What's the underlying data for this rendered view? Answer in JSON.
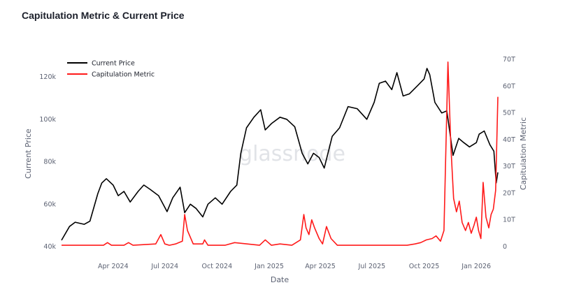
{
  "chart_data": {
    "type": "line",
    "title": "Capitulation Metric & Current Price",
    "xlabel": "Date",
    "x_ticks": [
      "Apr 2024",
      "Jul 2024",
      "Oct 2024",
      "Jan 2025",
      "Apr 2025",
      "Jul 2025",
      "Oct 2025",
      "Jan 2026"
    ],
    "y_left": {
      "label": "Current Price",
      "ticks": [
        "40k",
        "60k",
        "80k",
        "100k",
        "120k"
      ],
      "range": [
        40000,
        125000
      ]
    },
    "y_right": {
      "label": "Capitulation Metric",
      "ticks": [
        "0",
        "10T",
        "20T",
        "30T",
        "40T",
        "50T",
        "60T",
        "70T"
      ],
      "range": [
        0,
        70
      ]
    },
    "legend": {
      "position": "top-left"
    },
    "watermark": "glassnode",
    "colors": {
      "price": "#000000",
      "metric": "#ff1a1a"
    },
    "series": [
      {
        "name": "Current Price",
        "axis": "left",
        "x": [
          "2024-01-01",
          "2024-01-15",
          "2024-01-25",
          "2024-02-10",
          "2024-02-20",
          "2024-03-05",
          "2024-03-12",
          "2024-03-20",
          "2024-04-01",
          "2024-04-10",
          "2024-04-20",
          "2024-05-01",
          "2024-05-15",
          "2024-05-25",
          "2024-06-05",
          "2024-06-20",
          "2024-07-05",
          "2024-07-15",
          "2024-07-28",
          "2024-08-05",
          "2024-08-15",
          "2024-08-25",
          "2024-09-06",
          "2024-09-15",
          "2024-09-28",
          "2024-10-10",
          "2024-10-25",
          "2024-11-05",
          "2024-11-12",
          "2024-11-22",
          "2024-12-05",
          "2024-12-17",
          "2024-12-25",
          "2025-01-05",
          "2025-01-20",
          "2025-02-01",
          "2025-02-15",
          "2025-02-28",
          "2025-03-10",
          "2025-03-20",
          "2025-03-30",
          "2025-04-08",
          "2025-04-22",
          "2025-05-05",
          "2025-05-20",
          "2025-06-05",
          "2025-06-22",
          "2025-07-05",
          "2025-07-14",
          "2025-07-25",
          "2025-08-05",
          "2025-08-14",
          "2025-08-25",
          "2025-09-05",
          "2025-09-20",
          "2025-10-01",
          "2025-10-06",
          "2025-10-11",
          "2025-10-20",
          "2025-11-01",
          "2025-11-10",
          "2025-11-21",
          "2025-12-01",
          "2025-12-10",
          "2025-12-20",
          "2026-01-01",
          "2026-01-06",
          "2026-01-15",
          "2026-01-25",
          "2026-02-01",
          "2026-02-05",
          "2026-02-08"
        ],
        "values": [
          43000,
          49500,
          51500,
          50500,
          52000,
          65000,
          70000,
          72000,
          69000,
          64000,
          66000,
          61000,
          66000,
          69000,
          67000,
          64000,
          56500,
          63000,
          68000,
          56000,
          60000,
          58000,
          54000,
          60000,
          63000,
          60000,
          66000,
          69000,
          84000,
          96000,
          101000,
          104500,
          95000,
          98000,
          101000,
          100000,
          96500,
          84000,
          79000,
          84000,
          82000,
          77000,
          92000,
          96000,
          106000,
          105000,
          100000,
          108000,
          117000,
          118000,
          114000,
          122000,
          111000,
          112000,
          116000,
          119000,
          124000,
          121000,
          108000,
          103000,
          104000,
          83000,
          91000,
          89000,
          87000,
          89000,
          93000,
          94500,
          88000,
          85000,
          70000,
          75000
        ]
      },
      {
        "name": "Capitulation Metric",
        "axis": "right",
        "x": [
          "2024-01-01",
          "2024-03-15",
          "2024-03-22",
          "2024-03-29",
          "2024-04-20",
          "2024-04-28",
          "2024-05-06",
          "2024-06-15",
          "2024-06-24",
          "2024-07-01",
          "2024-07-09",
          "2024-07-20",
          "2024-08-01",
          "2024-08-05",
          "2024-08-10",
          "2024-08-20",
          "2024-09-06",
          "2024-09-09",
          "2024-09-15",
          "2024-10-15",
          "2024-11-01",
          "2024-12-15",
          "2024-12-25",
          "2025-01-05",
          "2025-01-20",
          "2025-02-10",
          "2025-02-25",
          "2025-03-03",
          "2025-03-07",
          "2025-03-12",
          "2025-03-17",
          "2025-03-22",
          "2025-03-30",
          "2025-04-05",
          "2025-04-12",
          "2025-04-20",
          "2025-05-01",
          "2025-06-01",
          "2025-08-01",
          "2025-09-01",
          "2025-09-15",
          "2025-09-25",
          "2025-10-05",
          "2025-10-15",
          "2025-10-22",
          "2025-10-30",
          "2025-11-05",
          "2025-11-12",
          "2025-11-17",
          "2025-11-22",
          "2025-11-27",
          "2025-12-02",
          "2025-12-07",
          "2025-12-13",
          "2025-12-18",
          "2025-12-23",
          "2025-12-28",
          "2026-01-01",
          "2026-01-05",
          "2026-01-09",
          "2026-01-13",
          "2026-01-18",
          "2026-01-23",
          "2026-01-27",
          "2026-01-31",
          "2026-02-04",
          "2026-02-08"
        ],
        "values": [
          0.5,
          0.5,
          1.5,
          0.5,
          0.5,
          1.5,
          0.5,
          1,
          4.5,
          1,
          0.5,
          1,
          2,
          12,
          6,
          1,
          1,
          2.5,
          0.5,
          0.5,
          1.5,
          0.5,
          2.5,
          0.5,
          1,
          0.5,
          2.5,
          12,
          7,
          4.5,
          10,
          7,
          3,
          1,
          7.5,
          3,
          0.5,
          0.5,
          0.5,
          0.5,
          1,
          1.5,
          2.5,
          3,
          4,
          2,
          6,
          69,
          38,
          18,
          13,
          17,
          9,
          6,
          9,
          5,
          8,
          11,
          6,
          3,
          24,
          11,
          7,
          12,
          14,
          21,
          56
        ]
      }
    ]
  }
}
